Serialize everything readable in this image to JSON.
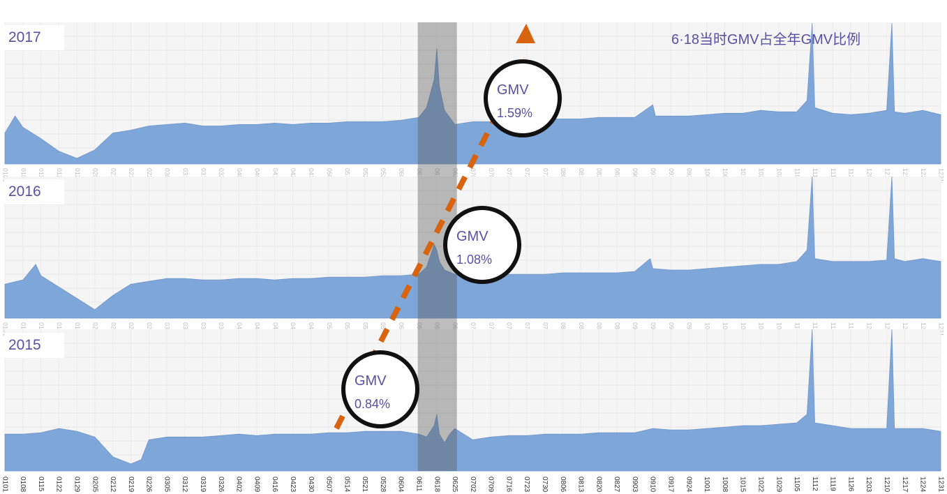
{
  "chart_data": {
    "type": "area",
    "title": "6·18当时GMV占全年GMV比例",
    "xlabel": "",
    "ylabel": "",
    "highlight_range": [
      "0611",
      "0625"
    ],
    "x_ticks": [
      "0101",
      "0108",
      "0115",
      "0122",
      "0129",
      "0205",
      "0212",
      "0219",
      "0226",
      "0305",
      "0312",
      "0319",
      "0326",
      "0402",
      "0409",
      "0416",
      "0423",
      "0430",
      "0507",
      "0514",
      "0521",
      "0528",
      "0604",
      "0611",
      "0618",
      "0625",
      "0702",
      "0709",
      "0716",
      "0723",
      "0730",
      "0806",
      "0813",
      "0820",
      "0827",
      "0903",
      "0910",
      "0917",
      "0924",
      "1001",
      "1008",
      "1015",
      "1022",
      "1029",
      "1105",
      "1112",
      "1119",
      "1126",
      "1203",
      "1210",
      "1217",
      "1224",
      "1231"
    ],
    "panels": [
      {
        "year": "2017",
        "annotation": {
          "label": "GMV",
          "value": "1.59%",
          "share_percent": 1.59
        },
        "relative_level": [
          [
            "0101",
            22
          ],
          [
            "0105",
            34
          ],
          [
            "0108",
            26
          ],
          [
            "0115",
            18
          ],
          [
            "0122",
            9
          ],
          [
            "0129",
            4
          ],
          [
            "0205",
            10
          ],
          [
            "0212",
            22
          ],
          [
            "0219",
            24
          ],
          [
            "0226",
            27
          ],
          [
            "0305",
            28
          ],
          [
            "0312",
            29
          ],
          [
            "0319",
            27
          ],
          [
            "0326",
            27
          ],
          [
            "0402",
            28
          ],
          [
            "0409",
            28
          ],
          [
            "0416",
            29
          ],
          [
            "0423",
            28
          ],
          [
            "0430",
            29
          ],
          [
            "0507",
            29
          ],
          [
            "0514",
            30
          ],
          [
            "0521",
            30
          ],
          [
            "0528",
            30
          ],
          [
            "0604",
            31
          ],
          [
            "0611",
            33
          ],
          [
            "0614",
            40
          ],
          [
            "0617",
            60
          ],
          [
            "0618",
            82
          ],
          [
            "0619",
            55
          ],
          [
            "0621",
            38
          ],
          [
            "0625",
            28
          ],
          [
            "0702",
            30
          ],
          [
            "0709",
            30
          ],
          [
            "0716",
            31
          ],
          [
            "0723",
            31
          ],
          [
            "0730",
            32
          ],
          [
            "0806",
            32
          ],
          [
            "0813",
            32
          ],
          [
            "0820",
            33
          ],
          [
            "0827",
            33
          ],
          [
            "0903",
            33
          ],
          [
            "0910",
            42
          ],
          [
            "0911",
            34
          ],
          [
            "0917",
            34
          ],
          [
            "0924",
            34
          ],
          [
            "1001",
            35
          ],
          [
            "1008",
            36
          ],
          [
            "1015",
            36
          ],
          [
            "1022",
            38
          ],
          [
            "1029",
            37
          ],
          [
            "1105",
            37
          ],
          [
            "1109",
            45
          ],
          [
            "1111",
            100
          ],
          [
            "1112",
            40
          ],
          [
            "1119",
            36
          ],
          [
            "1126",
            35
          ],
          [
            "1203",
            36
          ],
          [
            "1210",
            38
          ],
          [
            "1212",
            100
          ],
          [
            "1213",
            37
          ],
          [
            "1217",
            36
          ],
          [
            "1224",
            38
          ],
          [
            "1231",
            35
          ]
        ]
      },
      {
        "year": "2016",
        "annotation": {
          "label": "GMV",
          "value": "1.08%",
          "share_percent": 1.08
        },
        "relative_level": [
          [
            "0101",
            24
          ],
          [
            "0108",
            27
          ],
          [
            "0113",
            38
          ],
          [
            "0115",
            30
          ],
          [
            "0122",
            22
          ],
          [
            "0129",
            14
          ],
          [
            "0205",
            6
          ],
          [
            "0212",
            16
          ],
          [
            "0219",
            24
          ],
          [
            "0226",
            26
          ],
          [
            "0305",
            28
          ],
          [
            "0312",
            28
          ],
          [
            "0319",
            27
          ],
          [
            "0326",
            27
          ],
          [
            "0402",
            28
          ],
          [
            "0409",
            28
          ],
          [
            "0416",
            27
          ],
          [
            "0423",
            28
          ],
          [
            "0430",
            28
          ],
          [
            "0507",
            29
          ],
          [
            "0514",
            29
          ],
          [
            "0521",
            29
          ],
          [
            "0528",
            30
          ],
          [
            "0604",
            30
          ],
          [
            "0611",
            31
          ],
          [
            "0614",
            36
          ],
          [
            "0617",
            52
          ],
          [
            "0618",
            48
          ],
          [
            "0619",
            40
          ],
          [
            "0621",
            34
          ],
          [
            "0625",
            31
          ],
          [
            "0702",
            30
          ],
          [
            "0709",
            30
          ],
          [
            "0716",
            31
          ],
          [
            "0723",
            31
          ],
          [
            "0730",
            31
          ],
          [
            "0806",
            32
          ],
          [
            "0813",
            32
          ],
          [
            "0820",
            32
          ],
          [
            "0827",
            32
          ],
          [
            "0903",
            33
          ],
          [
            "0909",
            42
          ],
          [
            "0910",
            35
          ],
          [
            "0917",
            34
          ],
          [
            "0924",
            34
          ],
          [
            "1001",
            35
          ],
          [
            "1008",
            36
          ],
          [
            "1015",
            37
          ],
          [
            "1022",
            38
          ],
          [
            "1029",
            38
          ],
          [
            "1105",
            40
          ],
          [
            "1109",
            48
          ],
          [
            "1111",
            100
          ],
          [
            "1112",
            42
          ],
          [
            "1119",
            40
          ],
          [
            "1126",
            40
          ],
          [
            "1203",
            40
          ],
          [
            "1210",
            41
          ],
          [
            "1212",
            100
          ],
          [
            "1213",
            42
          ],
          [
            "1217",
            40
          ],
          [
            "1224",
            42
          ],
          [
            "1231",
            40
          ]
        ]
      },
      {
        "year": "2015",
        "annotation": {
          "label": "GMV",
          "value": "0.84%",
          "share_percent": 0.84
        },
        "relative_level": [
          [
            "0101",
            26
          ],
          [
            "0108",
            26
          ],
          [
            "0115",
            27
          ],
          [
            "0122",
            30
          ],
          [
            "0129",
            28
          ],
          [
            "0205",
            24
          ],
          [
            "0212",
            10
          ],
          [
            "0219",
            5
          ],
          [
            "0223",
            8
          ],
          [
            "0226",
            22
          ],
          [
            "0305",
            24
          ],
          [
            "0312",
            24
          ],
          [
            "0319",
            24
          ],
          [
            "0326",
            25
          ],
          [
            "0402",
            26
          ],
          [
            "0409",
            25
          ],
          [
            "0416",
            26
          ],
          [
            "0423",
            26
          ],
          [
            "0430",
            26
          ],
          [
            "0507",
            27
          ],
          [
            "0514",
            27
          ],
          [
            "0521",
            28
          ],
          [
            "0528",
            28
          ],
          [
            "0604",
            28
          ],
          [
            "0611",
            26
          ],
          [
            "0614",
            24
          ],
          [
            "0617",
            32
          ],
          [
            "0618",
            40
          ],
          [
            "0619",
            26
          ],
          [
            "0621",
            20
          ],
          [
            "0623",
            26
          ],
          [
            "0625",
            30
          ],
          [
            "0702",
            22
          ],
          [
            "0709",
            24
          ],
          [
            "0716",
            25
          ],
          [
            "0723",
            25
          ],
          [
            "0730",
            26
          ],
          [
            "0806",
            26
          ],
          [
            "0813",
            26
          ],
          [
            "0820",
            27
          ],
          [
            "0827",
            27
          ],
          [
            "0903",
            27
          ],
          [
            "0910",
            30
          ],
          [
            "0917",
            29
          ],
          [
            "0924",
            29
          ],
          [
            "1001",
            30
          ],
          [
            "1008",
            31
          ],
          [
            "1015",
            32
          ],
          [
            "1022",
            32
          ],
          [
            "1029",
            33
          ],
          [
            "1105",
            34
          ],
          [
            "1109",
            40
          ],
          [
            "1111",
            100
          ],
          [
            "1112",
            34
          ],
          [
            "1119",
            32
          ],
          [
            "1126",
            30
          ],
          [
            "1203",
            30
          ],
          [
            "1210",
            30
          ],
          [
            "1212",
            100
          ],
          [
            "1213",
            30
          ],
          [
            "1217",
            30
          ],
          [
            "1224",
            30
          ],
          [
            "1231",
            28
          ]
        ]
      }
    ]
  },
  "colors": {
    "area": "#7ea6d8",
    "highlight": "#5a5a5a",
    "trend_arrow": "#d9640f",
    "text": "#5a4fa5",
    "circle_stroke": "#111111"
  }
}
